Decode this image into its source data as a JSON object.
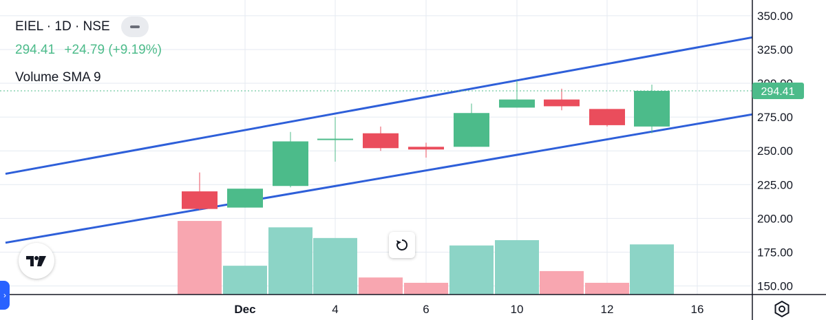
{
  "legend": {
    "title": "EIEL · 1D · NSE",
    "price": "294.41",
    "change": "+24.79 (+9.19%)",
    "indicator": "Volume SMA 9"
  },
  "price_tag": "294.41",
  "icons": [
    "tradingview-logo-icon",
    "reset-icon",
    "settings-icon",
    "collapse-icon",
    "side-panel-arrow-icon"
  ],
  "colors": {
    "up": "#4cbb8a",
    "down": "#ea4d5c",
    "up_volume": "#8cd4c6",
    "down_volume": "#f8a6b0",
    "channel": "#2e5fd9",
    "grid": "#e4eaf1"
  },
  "chart_data": {
    "type": "candlestick",
    "x_axis": {
      "tick_labels": [
        "Dec",
        "4",
        "6",
        "10",
        "12",
        "16"
      ]
    },
    "y_axis": {
      "tick_labels": [
        "350.00",
        "325.00",
        "300.00",
        "275.00",
        "250.00",
        "225.00",
        "200.00",
        "175.00",
        "150.00"
      ],
      "range": [
        143,
        354
      ]
    },
    "candles": [
      {
        "date": "Nov 29",
        "open": 220,
        "high": 234,
        "low": 206,
        "close": 207
      },
      {
        "date": "Dec 2",
        "open": 208,
        "high": 222,
        "low": 208,
        "close": 222
      },
      {
        "date": "Dec 3",
        "open": 224,
        "high": 264,
        "low": 223,
        "close": 257
      },
      {
        "date": "Dec 4",
        "open": 259,
        "high": 275,
        "low": 242,
        "close": 259
      },
      {
        "date": "Dec 5",
        "open": 263,
        "high": 268,
        "low": 250,
        "close": 252
      },
      {
        "date": "Dec 6",
        "open": 253,
        "high": 256,
        "low": 245,
        "close": 251
      },
      {
        "date": "Dec 9",
        "open": 253,
        "high": 285,
        "low": 253,
        "close": 278
      },
      {
        "date": "Dec 10",
        "open": 282,
        "high": 302,
        "low": 282,
        "close": 288
      },
      {
        "date": "Dec 11",
        "open": 288,
        "high": 296,
        "low": 280,
        "close": 283
      },
      {
        "date": "Dec 12",
        "open": 281,
        "high": 281,
        "low": 268,
        "close": 269
      },
      {
        "date": "Dec 13",
        "open": 268,
        "high": 299,
        "low": 263,
        "close": 294.41
      }
    ],
    "volume_levels": [
      0.69,
      0.27,
      0.63,
      0.53,
      0.16,
      0.11,
      0.46,
      0.51,
      0.22,
      0.11,
      0.47
    ],
    "channel_lines": [
      {
        "start": {
          "date": "Nov 27",
          "price": 233
        },
        "end": {
          "date": "Dec 17",
          "price": 334
        }
      },
      {
        "start": {
          "date": "Nov 27",
          "price": 182
        },
        "end": {
          "date": "Dec 17",
          "price": 277
        }
      }
    ],
    "last_price": 294.41
  }
}
